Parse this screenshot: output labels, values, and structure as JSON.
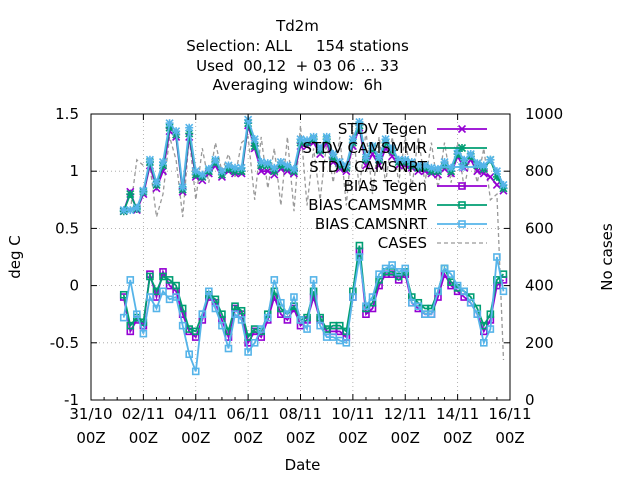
{
  "chart_data": {
    "type": "line",
    "title_lines": [
      "Td2m",
      "Selection: ALL     154 stations",
      "Used  00,12  + 03 06 ... 33",
      "Averaging window:  6h"
    ],
    "xlabel": "Date",
    "ylabel": "deg C",
    "y2label": "No cases",
    "x_ticks": [
      {
        "top": "31/10",
        "bottom": "00Z",
        "day": 0
      },
      {
        "top": "02/11",
        "bottom": "00Z",
        "day": 2
      },
      {
        "top": "04/11",
        "bottom": "00Z",
        "day": 4
      },
      {
        "top": "06/11",
        "bottom": "00Z",
        "day": 6
      },
      {
        "top": "08/11",
        "bottom": "00Z",
        "day": 8
      },
      {
        "top": "10/11",
        "bottom": "00Z",
        "day": 10
      },
      {
        "top": "12/11",
        "bottom": "00Z",
        "day": 12
      },
      {
        "top": "14/11",
        "bottom": "00Z",
        "day": 14
      },
      {
        "top": "16/11",
        "bottom": "00Z",
        "day": 16
      }
    ],
    "xlim_days": [
      0,
      16
    ],
    "ylim": [
      -1,
      1.5
    ],
    "yticks": [
      "-1",
      "-0.5",
      "0",
      "0.5",
      "1",
      "1.5"
    ],
    "y2lim": [
      0,
      1000
    ],
    "y2ticks": [
      "0",
      "200",
      "400",
      "600",
      "800",
      "1000"
    ],
    "grid": true,
    "legend_position": "top-right",
    "x_days": [
      1.25,
      1.5,
      1.75,
      2.0,
      2.25,
      2.5,
      2.75,
      3.0,
      3.25,
      3.5,
      3.75,
      4.0,
      4.25,
      4.5,
      4.75,
      5.0,
      5.25,
      5.5,
      5.75,
      6.0,
      6.25,
      6.5,
      6.75,
      7.0,
      7.25,
      7.5,
      7.75,
      8.0,
      8.25,
      8.5,
      8.75,
      9.0,
      9.25,
      9.5,
      9.75,
      10.0,
      10.25,
      10.5,
      10.75,
      11.0,
      11.25,
      11.5,
      11.75,
      12.0,
      12.25,
      12.5,
      12.75,
      13.0,
      13.25,
      13.5,
      13.75,
      14.0,
      14.25,
      14.5,
      14.75,
      15.0,
      15.25,
      15.5,
      15.75
    ],
    "series": [
      {
        "name": "STDV Tegen",
        "axis": "y1",
        "marker": "x",
        "color": "#9400d3",
        "values": [
          0.65,
          0.82,
          0.66,
          0.8,
          1.05,
          0.85,
          1.0,
          1.35,
          1.3,
          0.82,
          1.3,
          0.95,
          0.92,
          0.98,
          1.05,
          0.95,
          1.0,
          0.98,
          0.98,
          1.4,
          1.2,
          1.0,
          1.0,
          0.97,
          1.02,
          1.0,
          0.98,
          1.22,
          1.22,
          1.25,
          1.15,
          1.25,
          1.08,
          1.02,
          1.0,
          1.22,
          1.38,
          1.05,
          1.15,
          1.05,
          1.2,
          1.13,
          1.05,
          1.05,
          1.03,
          1.0,
          1.0,
          0.98,
          0.97,
          1.02,
          0.98,
          1.13,
          1.03,
          1.1,
          1.0,
          0.98,
          0.95,
          0.88,
          0.83
        ]
      },
      {
        "name": "STDV CAMSMMR",
        "axis": "y1",
        "marker": "star",
        "color": "#009e73",
        "values": [
          0.65,
          0.8,
          0.67,
          0.82,
          1.08,
          0.88,
          1.05,
          1.38,
          1.32,
          0.84,
          1.33,
          0.97,
          0.95,
          1.0,
          1.08,
          0.97,
          1.02,
          1.0,
          1.0,
          1.42,
          1.22,
          1.05,
          1.05,
          1.0,
          1.05,
          1.03,
          1.0,
          1.25,
          1.25,
          1.28,
          1.18,
          1.28,
          1.12,
          1.05,
          1.03,
          1.25,
          1.4,
          1.1,
          1.2,
          1.1,
          1.25,
          1.18,
          1.08,
          1.08,
          1.05,
          1.03,
          1.03,
          1.0,
          1.0,
          1.05,
          1.0,
          1.15,
          1.07,
          1.13,
          1.05,
          1.02,
          1.1,
          0.95,
          0.85
        ]
      },
      {
        "name": "STDV CAMSNRT",
        "axis": "y1",
        "marker": "star",
        "color": "#56b4e9",
        "values": [
          0.66,
          0.66,
          0.68,
          0.83,
          1.1,
          0.9,
          1.08,
          1.42,
          1.35,
          0.86,
          1.38,
          1.0,
          0.97,
          1.02,
          1.1,
          1.0,
          1.05,
          1.03,
          1.03,
          1.45,
          1.28,
          1.08,
          1.07,
          1.03,
          1.08,
          1.05,
          1.02,
          1.28,
          1.27,
          1.3,
          1.2,
          1.3,
          1.15,
          1.08,
          1.05,
          1.28,
          1.43,
          1.12,
          1.22,
          1.12,
          1.28,
          1.2,
          1.1,
          1.1,
          1.08,
          1.05,
          1.05,
          1.03,
          1.02,
          1.08,
          1.03,
          1.18,
          1.1,
          1.15,
          1.07,
          1.05,
          1.1,
          1.0,
          0.88
        ]
      },
      {
        "name": "BIAS Tegen",
        "axis": "y1",
        "marker": "square",
        "color": "#9400d3",
        "values": [
          -0.1,
          -0.4,
          -0.3,
          -0.35,
          0.1,
          -0.1,
          0.12,
          0.0,
          -0.05,
          -0.25,
          -0.4,
          -0.45,
          -0.3,
          -0.1,
          -0.15,
          -0.3,
          -0.45,
          -0.2,
          -0.25,
          -0.5,
          -0.4,
          -0.45,
          -0.3,
          -0.1,
          -0.25,
          -0.3,
          -0.2,
          -0.35,
          -0.3,
          -0.1,
          -0.3,
          -0.4,
          -0.4,
          -0.4,
          -0.45,
          -0.1,
          0.3,
          -0.25,
          -0.2,
          0.0,
          0.1,
          0.1,
          0.05,
          0.1,
          -0.15,
          -0.2,
          -0.25,
          -0.25,
          -0.1,
          0.1,
          0.0,
          -0.05,
          -0.1,
          -0.15,
          -0.25,
          -0.4,
          -0.3,
          0.0,
          0.05
        ]
      },
      {
        "name": "BIAS CAMSMMR",
        "axis": "y1",
        "marker": "square",
        "color": "#009e73",
        "values": [
          -0.08,
          -0.35,
          -0.28,
          -0.32,
          0.08,
          -0.05,
          0.08,
          0.05,
          0.0,
          -0.2,
          -0.38,
          -0.4,
          -0.25,
          -0.08,
          -0.12,
          -0.25,
          -0.4,
          -0.18,
          -0.22,
          -0.45,
          -0.38,
          -0.4,
          -0.25,
          -0.05,
          -0.2,
          -0.25,
          -0.18,
          -0.3,
          -0.28,
          -0.05,
          -0.28,
          -0.38,
          -0.35,
          -0.35,
          -0.4,
          -0.05,
          0.35,
          -0.2,
          -0.15,
          0.05,
          0.12,
          0.12,
          0.08,
          0.12,
          -0.1,
          -0.15,
          -0.2,
          -0.2,
          -0.05,
          0.15,
          0.03,
          -0.02,
          -0.05,
          -0.1,
          -0.2,
          -0.35,
          -0.25,
          0.05,
          0.1
        ]
      },
      {
        "name": "BIAS CAMSNRT",
        "axis": "y1",
        "marker": "square",
        "color": "#56b4e9",
        "values": [
          -0.28,
          0.05,
          -0.25,
          -0.42,
          -0.1,
          -0.2,
          -0.05,
          -0.12,
          -0.1,
          -0.35,
          -0.6,
          -0.75,
          -0.25,
          -0.05,
          -0.2,
          -0.35,
          -0.55,
          -0.25,
          -0.3,
          -0.58,
          -0.5,
          -0.38,
          -0.28,
          0.05,
          -0.15,
          -0.25,
          -0.1,
          -0.3,
          -0.38,
          0.05,
          -0.35,
          -0.45,
          -0.45,
          -0.48,
          -0.5,
          -0.1,
          0.25,
          -0.18,
          -0.1,
          0.1,
          0.15,
          0.18,
          0.12,
          0.15,
          -0.15,
          -0.18,
          -0.25,
          -0.25,
          -0.05,
          0.15,
          0.1,
          0.0,
          -0.05,
          -0.15,
          -0.25,
          -0.5,
          -0.38,
          0.25,
          -0.05
        ]
      },
      {
        "name": "CASES",
        "axis": "y2",
        "marker": "none",
        "color": "#999999",
        "dash": true,
        "values": [
          660,
          660,
          840,
          820,
          820,
          640,
          720,
          920,
          840,
          640,
          920,
          700,
          880,
          760,
          900,
          800,
          860,
          780,
          900,
          920,
          700,
          920,
          740,
          880,
          680,
          920,
          660,
          960,
          680,
          880,
          700,
          900,
          760,
          920,
          680,
          940,
          740,
          940,
          720,
          920,
          760,
          920,
          760,
          920,
          740,
          920,
          760,
          900,
          740,
          900,
          760,
          900,
          740,
          860,
          760,
          880,
          700,
          720,
          140
        ]
      }
    ]
  }
}
